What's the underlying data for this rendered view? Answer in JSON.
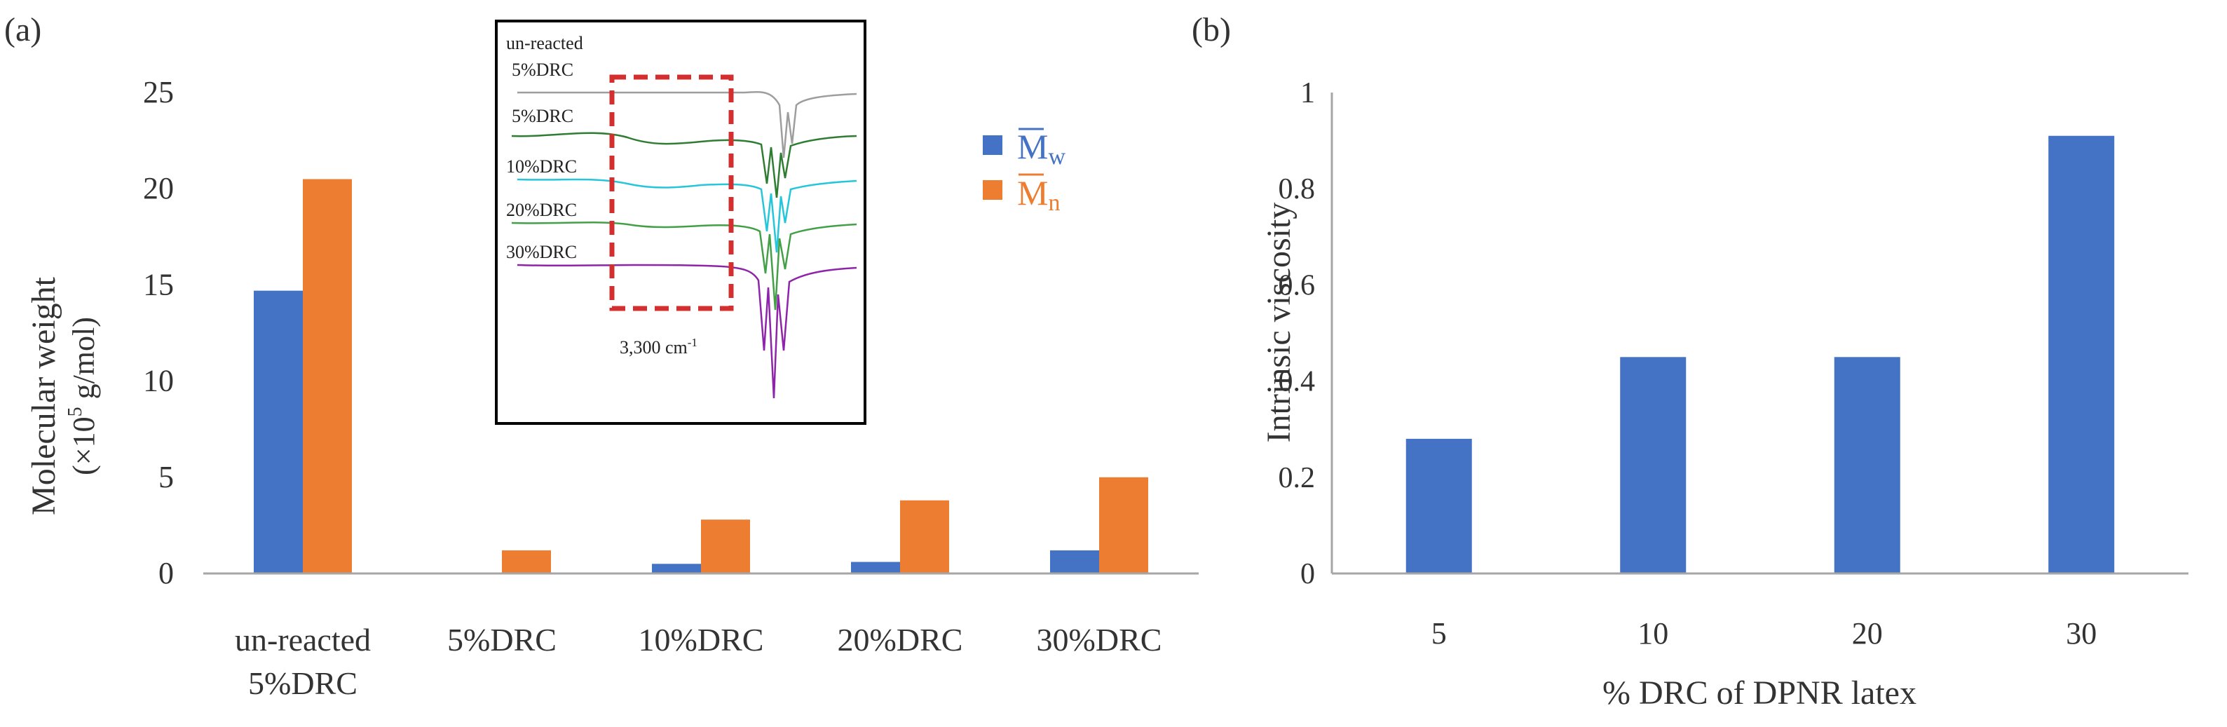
{
  "colors": {
    "mw": "#4472C4",
    "mn": "#ED7D31",
    "axis": "#A6A6A6",
    "text": "#333333",
    "inset_box": "#D32F2F"
  },
  "chart_data": [
    {
      "id": "a",
      "panel_label": "(a)",
      "type": "bar",
      "categories": [
        "un-reacted\n5%DRC",
        "5%DRC",
        "10%DRC",
        "20%DRC",
        "30%DRC"
      ],
      "category_lines": [
        [
          "un-reacted",
          "5%DRC"
        ],
        [
          "5%DRC"
        ],
        [
          "10%DRC"
        ],
        [
          "20%DRC"
        ],
        [
          "30%DRC"
        ]
      ],
      "series": [
        {
          "name": "M̄w",
          "letter": "M",
          "sub": "w",
          "color": "#4472C4",
          "values": [
            14.7,
            0,
            0.5,
            0.6,
            1.2
          ]
        },
        {
          "name": "M̄n",
          "letter": "M",
          "sub": "n",
          "color": "#ED7D31",
          "values": [
            20.5,
            1.2,
            2.8,
            3.8,
            5.0
          ]
        }
      ],
      "ylabel_line1": "Molecular weight",
      "ylabel_line2_pre": "(×10",
      "ylabel_line2_sup": "5",
      "ylabel_line2_post": " g/mol)",
      "xlabel": "",
      "ylim": [
        0,
        25
      ],
      "yticks": [
        0,
        5,
        10,
        15,
        20,
        25
      ],
      "legend": "right, inside",
      "grid": false,
      "inset": {
        "type": "line",
        "description": "FTIR spectra",
        "series_labels": [
          "un-reacted 5%DRC",
          "5%DRC",
          "10%DRC",
          "20%DRC",
          "30%DRC"
        ],
        "label_lines": [
          "un-reacted",
          "5%DRC",
          "5%DRC",
          "10%DRC",
          "20%DRC",
          "30%DRC"
        ],
        "colors": [
          "#9E9E9E",
          "#2E7D32",
          "#26C6DA",
          "#43A047",
          "#8E24AA"
        ],
        "annotation": "3,300 cm",
        "annotation_sup": "-1"
      }
    },
    {
      "id": "b",
      "panel_label": "(b)",
      "type": "bar",
      "categories": [
        "5",
        "10",
        "20",
        "30"
      ],
      "series": [
        {
          "name": "Intrinsic viscosity",
          "color": "#4472C4",
          "values": [
            0.28,
            0.45,
            0.45,
            0.91
          ]
        }
      ],
      "xlabel": "% DRC of DPNR latex",
      "ylabel": "Intrinsic viscosity",
      "ylim": [
        0,
        1
      ],
      "yticks": [
        0,
        0.2,
        0.4,
        0.6,
        0.8,
        1
      ],
      "ytick_labels": [
        "0",
        "0.2",
        "0.4",
        "0.6",
        "0.8",
        "1"
      ],
      "grid": false
    }
  ]
}
